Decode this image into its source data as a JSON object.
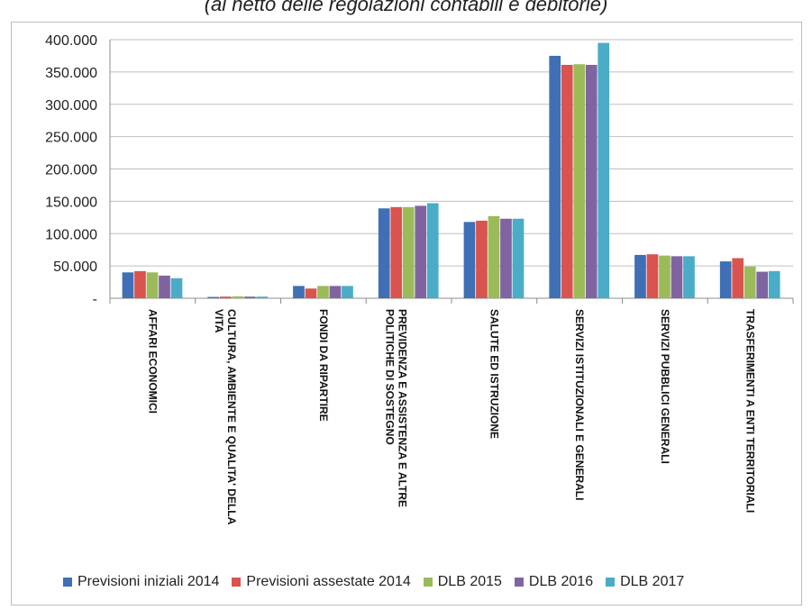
{
  "header": {
    "subtitle": "(al netto delle regolazioni contabili e debitorie)"
  },
  "chart_data": {
    "type": "bar",
    "categories": [
      "AFFARI ECONOMICI",
      "CULTURA, AMBIENTE E QUALITA' DELLA VITA",
      "FONDI DA RIPARTIRE",
      "PREVIDENZA E ASSISTENZA E ALTRE POLITICHE DI SOSTEGNO",
      "SALUTE ED ISTRUZIONE",
      "SERVIZI ISTITUZIONALI E GENERALI",
      "SERVIZI PUBBLICI GENERALI",
      "TRASFERIMENTI A ENTI TERRITORIALI"
    ],
    "category_lines": [
      [
        "AFFARI ECONOMICI"
      ],
      [
        "CULTURA, AMBIENTE E QUALITA' DELLA",
        "VITA"
      ],
      [
        "FONDI DA RIPARTIRE"
      ],
      [
        "PREVIDENZA E ASSISTENZA E ALTRE",
        "POLITICHE DI SOSTEGNO"
      ],
      [
        "SALUTE ED ISTRUZIONE"
      ],
      [
        "SERVIZI ISTITUZIONALI E GENERALI"
      ],
      [
        "SERVIZI PUBBLICI GENERALI"
      ],
      [
        "TRASFERIMENTI A ENTI TERRITORIALI"
      ]
    ],
    "series": [
      {
        "name": "Previsioni iniziali 2014",
        "color": "#3f6fb5",
        "values": [
          40000,
          2000,
          19000,
          139000,
          118000,
          375000,
          67000,
          57000
        ]
      },
      {
        "name": "Previsioni assestate 2014",
        "color": "#d9534f",
        "values": [
          42000,
          2500,
          15000,
          141000,
          120000,
          361000,
          68000,
          62000
        ]
      },
      {
        "name": "DLB 2015",
        "color": "#9bbb59",
        "values": [
          40000,
          3000,
          19000,
          141000,
          127000,
          362000,
          66000,
          49000
        ]
      },
      {
        "name": "DLB 2016",
        "color": "#8064a2",
        "values": [
          35000,
          2500,
          19000,
          143000,
          123000,
          361000,
          65000,
          41000
        ]
      },
      {
        "name": "DLB 2017",
        "color": "#4aacc6",
        "values": [
          31000,
          2500,
          19000,
          147000,
          123000,
          395000,
          65000,
          42000
        ]
      }
    ],
    "ylim": [
      0,
      400000
    ],
    "yticks": [
      {
        "value": 0,
        "label": "-"
      },
      {
        "value": 50000,
        "label": "50.000"
      },
      {
        "value": 100000,
        "label": "100.000"
      },
      {
        "value": 150000,
        "label": "150.000"
      },
      {
        "value": 200000,
        "label": "200.000"
      },
      {
        "value": 250000,
        "label": "250.000"
      },
      {
        "value": 300000,
        "label": "300.000"
      },
      {
        "value": 350000,
        "label": "350.000"
      },
      {
        "value": 400000,
        "label": "400.000"
      }
    ],
    "grid": true,
    "legend_position": "bottom"
  }
}
